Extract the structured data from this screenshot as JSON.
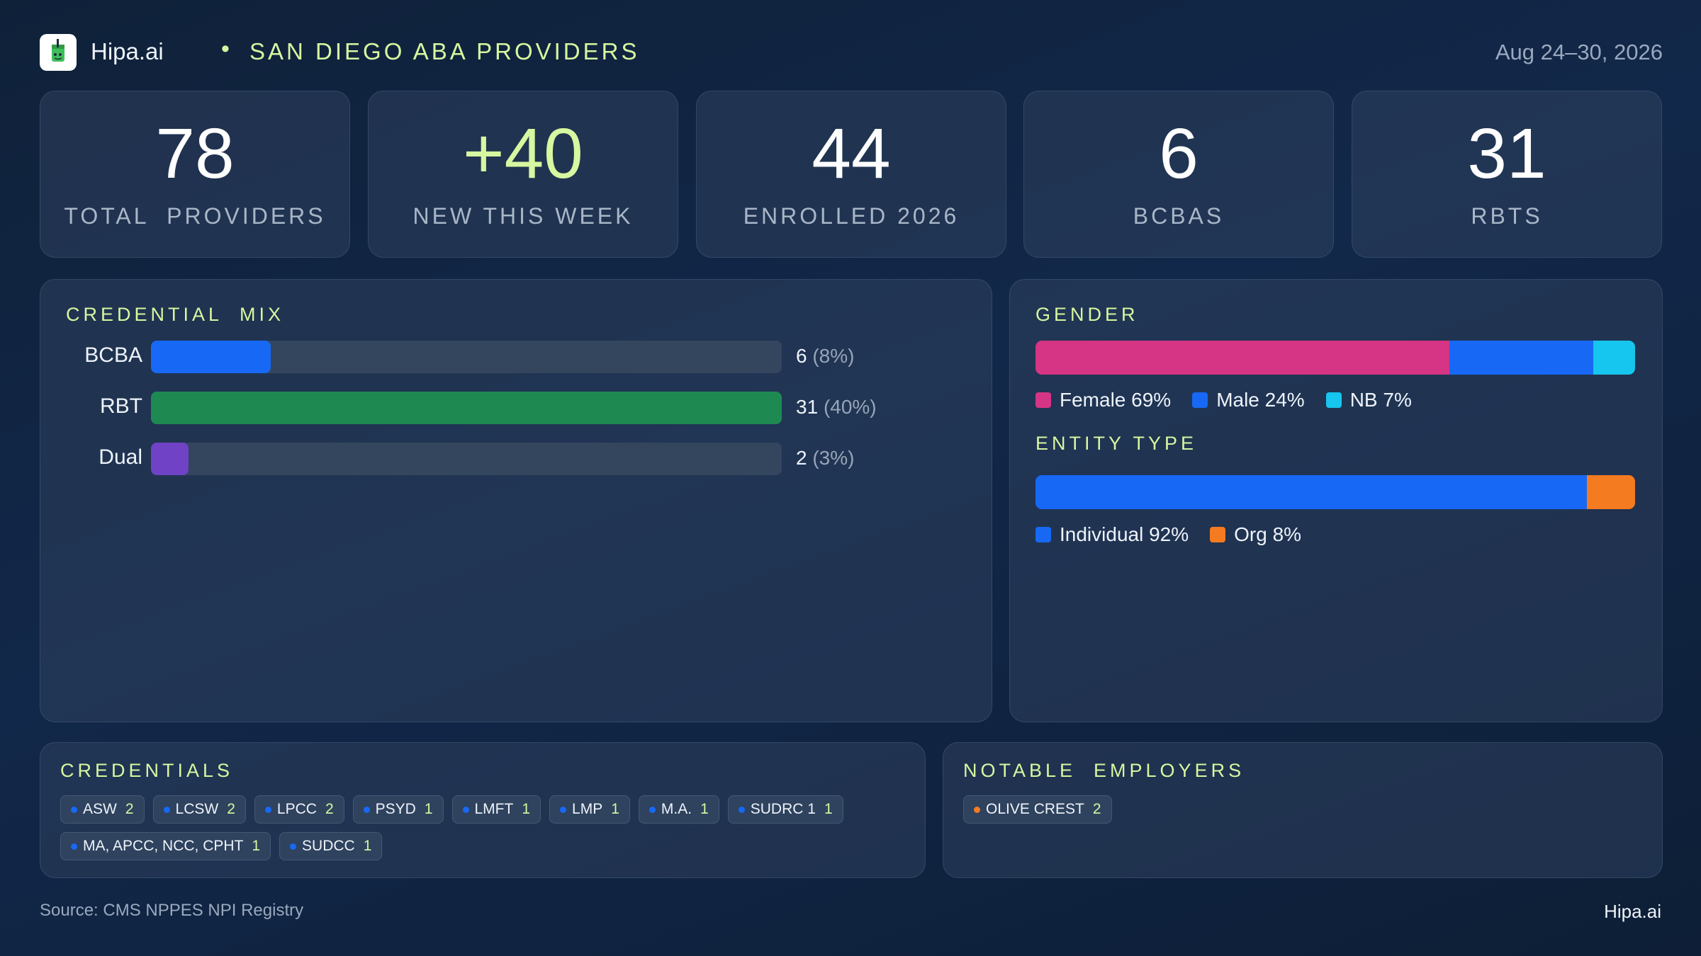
{
  "header": {
    "brand": "Hipa.ai",
    "separator": "•",
    "title": "SAN DIEGO ABA PROVIDERS",
    "date_range": "Aug 24–30, 2026"
  },
  "kpis": [
    {
      "value": "78",
      "label": "TOTAL  PROVIDERS"
    },
    {
      "value": "+40",
      "label": "NEW THIS WEEK"
    },
    {
      "value": "44",
      "label": "ENROLLED 2026"
    },
    {
      "value": "6",
      "label": "BCBAS"
    },
    {
      "value": "31",
      "label": "RBTS"
    }
  ],
  "credential_mix": {
    "title": "CREDENTIAL  MIX",
    "rows": [
      {
        "label": "BCBA",
        "count": "6",
        "pct": "(8%)",
        "fill": 0.19,
        "color": "#1769f5"
      },
      {
        "label": "RBT",
        "count": "31",
        "pct": "(40%)",
        "fill": 1.0,
        "color": "#1e8a52"
      },
      {
        "label": "Dual",
        "count": "2",
        "pct": "(3%)",
        "fill": 0.06,
        "color": "#6f42c6"
      }
    ]
  },
  "gender": {
    "title": "GENDER",
    "segments": [
      {
        "label": "Female 69%",
        "share": 69,
        "color": "#d63484"
      },
      {
        "label": "Male 24%",
        "share": 24,
        "color": "#1769f5"
      },
      {
        "label": "NB 7%",
        "share": 7,
        "color": "#16c6ee"
      }
    ]
  },
  "entity_type": {
    "title": "ENTITY TYPE",
    "segments": [
      {
        "label": "Individual 92%",
        "share": 92,
        "color": "#1769f5"
      },
      {
        "label": "Org 8%",
        "share": 8,
        "color": "#f47b20"
      }
    ]
  },
  "credentials": {
    "title": "CREDENTIALS",
    "chips": [
      {
        "name": "ASW",
        "count": "2"
      },
      {
        "name": "LCSW",
        "count": "2"
      },
      {
        "name": "LPCC",
        "count": "2"
      },
      {
        "name": "PSYD",
        "count": "1"
      },
      {
        "name": "LMFT",
        "count": "1"
      },
      {
        "name": "LMP",
        "count": "1"
      },
      {
        "name": "M.A.",
        "count": "1"
      },
      {
        "name": "SUDRC 1",
        "count": "1"
      },
      {
        "name": "MA, APCC, NCC, CPHT",
        "count": "1"
      },
      {
        "name": "SUDCC",
        "count": "1"
      }
    ],
    "bullet_color": "#1769f5"
  },
  "employers": {
    "title": "NOTABLE  EMPLOYERS",
    "chips": [
      {
        "name": "OLIVE CREST",
        "count": "2"
      }
    ],
    "bullet_color": "#f47b20"
  },
  "footer": {
    "source": "Source: CMS NPPES NPI Registry",
    "brand": "Hipa.ai"
  }
}
